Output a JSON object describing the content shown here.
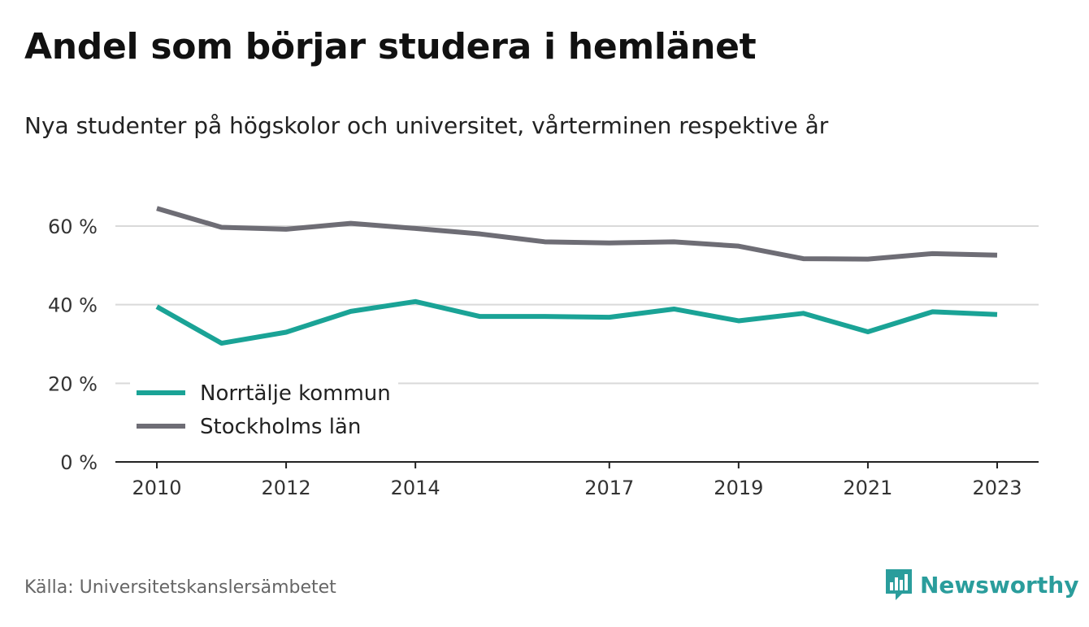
{
  "title": "Andel som börjar studera i hemlänet",
  "subtitle": "Nya studenter på högskolor och universitet, vårterminen respektive år",
  "source": "Källa: Universitetskanslersämbetet",
  "brand": {
    "name": "Newsworthy",
    "icon": "newsworthy-logo-icon",
    "color": "#2a9d9c"
  },
  "chart_data": {
    "type": "line",
    "x": [
      2010,
      2011,
      2012,
      2013,
      2014,
      2015,
      2016,
      2017,
      2018,
      2019,
      2020,
      2021,
      2022,
      2023
    ],
    "x_tick_labels": [
      "2010",
      "2012",
      "2014",
      "2017",
      "2019",
      "2021",
      "2023"
    ],
    "x_tick_values": [
      2010,
      2012,
      2014,
      2017,
      2019,
      2021,
      2023
    ],
    "y_ticks": [
      0,
      20,
      40,
      60
    ],
    "y_tick_labels": [
      "0 %",
      "20 %",
      "40 %",
      "60 %"
    ],
    "ylim": [
      0,
      70
    ],
    "grid": true,
    "legend_position": "bottom-left",
    "series": [
      {
        "name": "Norrtälje kommun",
        "color": "#1aa396",
        "values": [
          39.5,
          30.2,
          33.0,
          38.3,
          40.8,
          37.0,
          37.0,
          36.8,
          38.9,
          35.9,
          37.8,
          33.1,
          38.2,
          37.5
        ]
      },
      {
        "name": "Stockholms län",
        "color": "#6e6d75",
        "values": [
          64.5,
          59.7,
          59.2,
          60.7,
          59.4,
          58.0,
          56.0,
          55.7,
          56.0,
          54.9,
          51.7,
          51.6,
          53.0,
          52.6
        ]
      }
    ]
  }
}
